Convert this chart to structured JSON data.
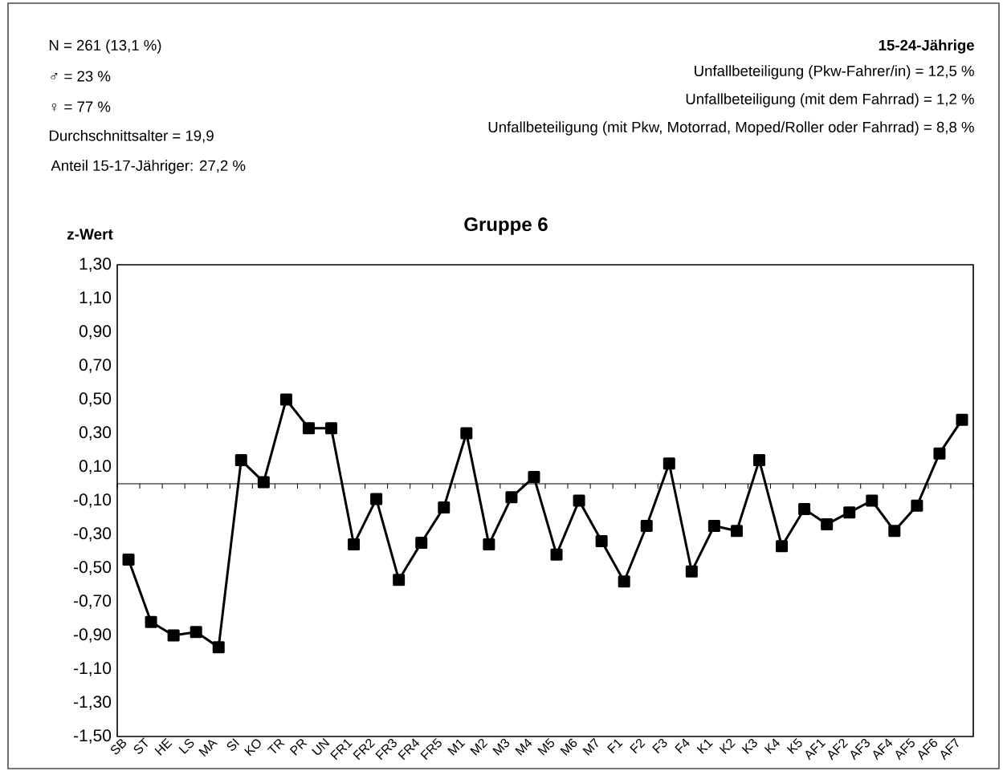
{
  "chart_data": {
    "type": "line",
    "title": "Gruppe 6",
    "ylabel": "z-Wert",
    "annotations": [
      "N  = 261 (13,1 %)",
      "♂ = 23 %",
      "♀ = 77 %",
      "Durchschnittsalter = 19,9",
      "Anteil 15-17-Jähriger:  27,2 %",
      "15-24-Jährige",
      "Unfallbeteiligung (Pkw-Fahrer/in) = 12,5 %",
      "Unfallbeteiligung (mit dem Fahrrad) = 1,2 %",
      "Unfallbeteiligung (mit Pkw, Motorrad, Moped/Roller oder Fahrrad) = 8,8 %"
    ],
    "categories": [
      "SB",
      "ST",
      "HE",
      "LS",
      "MA",
      "SI",
      "KO",
      "TR",
      "PR",
      "UN",
      "FR1",
      "FR2",
      "FR3",
      "FR4",
      "FR5",
      "M1",
      "M2",
      "M3",
      "M4",
      "M5",
      "M6",
      "M7",
      "F1",
      "F2",
      "F3",
      "F4",
      "K1",
      "K2",
      "K3",
      "K4",
      "K5",
      "AF1",
      "AF2",
      "AF3",
      "AF4",
      "AF5",
      "AF6",
      "AF7"
    ],
    "values": [
      -0.45,
      -0.82,
      -0.9,
      -0.88,
      -0.97,
      0.14,
      0.01,
      0.5,
      0.33,
      0.33,
      -0.36,
      -0.09,
      -0.57,
      -0.35,
      -0.14,
      0.3,
      -0.36,
      -0.08,
      0.04,
      -0.42,
      -0.1,
      -0.34,
      -0.58,
      -0.25,
      0.12,
      -0.52,
      -0.25,
      -0.28,
      0.14,
      -0.37,
      -0.15,
      -0.24,
      -0.17,
      -0.1,
      -0.28,
      -0.13,
      0.18,
      0.38
    ],
    "color": "#000000",
    "marker": "square",
    "line_style": "solid",
    "ylim": [
      -1.5,
      1.3
    ],
    "yticks": [
      {
        "value": -1.5,
        "label": "-1,50"
      },
      {
        "value": -1.3,
        "label": "-1,30"
      },
      {
        "value": -1.1,
        "label": "-1,10"
      },
      {
        "value": -0.9,
        "label": "-0,90"
      },
      {
        "value": -0.7,
        "label": "-0,70"
      },
      {
        "value": -0.5,
        "label": "-0,50"
      },
      {
        "value": -0.3,
        "label": "-0,30"
      },
      {
        "value": -0.1,
        "label": "-0,10"
      },
      {
        "value": 0.1,
        "label": "0,10"
      },
      {
        "value": 0.3,
        "label": "0,30"
      },
      {
        "value": 0.5,
        "label": "0,50"
      },
      {
        "value": 0.7,
        "label": "0,70"
      },
      {
        "value": 0.9,
        "label": "0,90"
      },
      {
        "value": 1.1,
        "label": "1,10"
      },
      {
        "value": 1.3,
        "label": "1,30"
      }
    ]
  }
}
